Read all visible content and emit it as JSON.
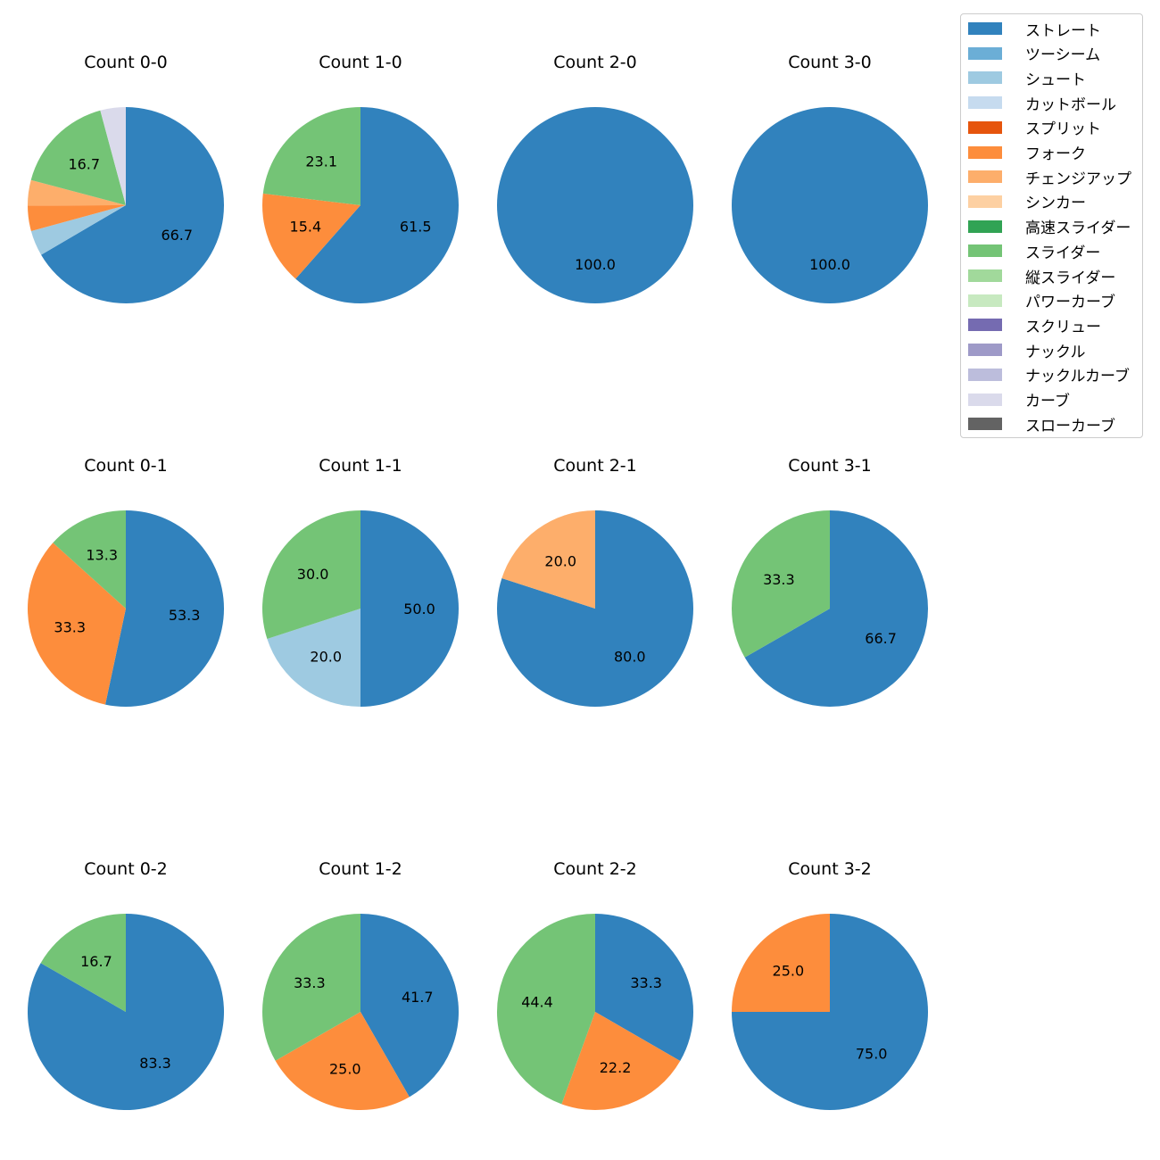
{
  "colors": {
    "ストレート": "#3182bd",
    "ツーシーム": "#6baed6",
    "シュート": "#9ecae1",
    "カットボール": "#c6dbef",
    "スプリット": "#e6550d",
    "フォーク": "#fd8d3c",
    "チェンジアップ": "#fdae6b",
    "シンカー": "#fdd0a2",
    "高速スライダー": "#31a354",
    "スライダー": "#74c476",
    "縦スライダー": "#a1d99b",
    "パワーカーブ": "#c7e9c0",
    "スクリュー": "#756bb1",
    "ナックル": "#9e9ac8",
    "ナックルカーブ": "#bcbddc",
    "カーブ": "#dadaeb",
    "スローカーブ": "#636363"
  },
  "legend": {
    "items": [
      "ストレート",
      "ツーシーム",
      "シュート",
      "カットボール",
      "スプリット",
      "フォーク",
      "チェンジアップ",
      "シンカー",
      "高速スライダー",
      "スライダー",
      "縦スライダー",
      "パワーカーブ",
      "スクリュー",
      "ナックル",
      "ナックルカーブ",
      "カーブ",
      "スローカーブ"
    ]
  },
  "chart_data": [
    {
      "type": "pie",
      "title": "Count 0-0",
      "slices": [
        {
          "label": "ストレート",
          "value": 66.7,
          "text": "66.7"
        },
        {
          "label": "シュート",
          "value": 4.2,
          "text": ""
        },
        {
          "label": "フォーク",
          "value": 4.2,
          "text": ""
        },
        {
          "label": "チェンジアップ",
          "value": 4.2,
          "text": ""
        },
        {
          "label": "スライダー",
          "value": 16.7,
          "text": "16.7"
        },
        {
          "label": "カーブ",
          "value": 4.2,
          "text": ""
        }
      ]
    },
    {
      "type": "pie",
      "title": "Count 1-0",
      "slices": [
        {
          "label": "ストレート",
          "value": 61.5,
          "text": "61.5"
        },
        {
          "label": "フォーク",
          "value": 15.4,
          "text": "15.4"
        },
        {
          "label": "スライダー",
          "value": 23.1,
          "text": "23.1"
        }
      ]
    },
    {
      "type": "pie",
      "title": "Count 2-0",
      "slices": [
        {
          "label": "ストレート",
          "value": 100.0,
          "text": "100.0"
        }
      ]
    },
    {
      "type": "pie",
      "title": "Count 3-0",
      "slices": [
        {
          "label": "ストレート",
          "value": 100.0,
          "text": "100.0"
        }
      ]
    },
    {
      "type": "pie",
      "title": "Count 0-1",
      "slices": [
        {
          "label": "ストレート",
          "value": 53.3,
          "text": "53.3"
        },
        {
          "label": "フォーク",
          "value": 33.3,
          "text": "33.3"
        },
        {
          "label": "スライダー",
          "value": 13.3,
          "text": "13.3"
        }
      ]
    },
    {
      "type": "pie",
      "title": "Count 1-1",
      "slices": [
        {
          "label": "ストレート",
          "value": 50.0,
          "text": "50.0"
        },
        {
          "label": "シュート",
          "value": 20.0,
          "text": "20.0"
        },
        {
          "label": "スライダー",
          "value": 30.0,
          "text": "30.0"
        }
      ]
    },
    {
      "type": "pie",
      "title": "Count 2-1",
      "slices": [
        {
          "label": "ストレート",
          "value": 80.0,
          "text": "80.0"
        },
        {
          "label": "チェンジアップ",
          "value": 20.0,
          "text": "20.0"
        }
      ]
    },
    {
      "type": "pie",
      "title": "Count 3-1",
      "slices": [
        {
          "label": "ストレート",
          "value": 66.7,
          "text": "66.7"
        },
        {
          "label": "スライダー",
          "value": 33.3,
          "text": "33.3"
        }
      ]
    },
    {
      "type": "pie",
      "title": "Count 0-2",
      "slices": [
        {
          "label": "ストレート",
          "value": 83.3,
          "text": "83.3"
        },
        {
          "label": "スライダー",
          "value": 16.7,
          "text": "16.7"
        }
      ]
    },
    {
      "type": "pie",
      "title": "Count 1-2",
      "slices": [
        {
          "label": "ストレート",
          "value": 41.7,
          "text": "41.7"
        },
        {
          "label": "フォーク",
          "value": 25.0,
          "text": "25.0"
        },
        {
          "label": "スライダー",
          "value": 33.3,
          "text": "33.3"
        }
      ]
    },
    {
      "type": "pie",
      "title": "Count 2-2",
      "slices": [
        {
          "label": "ストレート",
          "value": 33.3,
          "text": "33.3"
        },
        {
          "label": "フォーク",
          "value": 22.2,
          "text": "22.2"
        },
        {
          "label": "スライダー",
          "value": 44.4,
          "text": "44.4"
        }
      ]
    },
    {
      "type": "pie",
      "title": "Count 3-2",
      "slices": [
        {
          "label": "ストレート",
          "value": 75.0,
          "text": "75.0"
        },
        {
          "label": "フォーク",
          "value": 25.0,
          "text": "25.0"
        }
      ]
    }
  ]
}
